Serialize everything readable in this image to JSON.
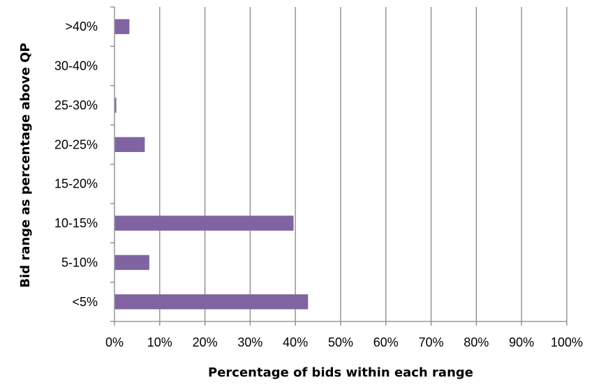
{
  "chart_data": {
    "type": "bar",
    "orientation": "horizontal",
    "categories": [
      ">40%",
      "30-40%",
      "25-30%",
      "20-25%",
      "15-20%",
      "10-15%",
      "5-10%",
      "<5%"
    ],
    "values": [
      3.3,
      0,
      0.4,
      6.7,
      0,
      39.6,
      7.7,
      42.8
    ],
    "xlabel": "Percentage of bids within each range",
    "ylabel": "Bid range as percentage above QP",
    "xlim": [
      0,
      100
    ],
    "xticks": [
      "0%",
      "10%",
      "20%",
      "30%",
      "40%",
      "50%",
      "60%",
      "70%",
      "80%",
      "90%",
      "100%"
    ],
    "grid": "vertical",
    "legend": "none",
    "bar_color": "#8064a2",
    "grid_color": "#868686"
  }
}
